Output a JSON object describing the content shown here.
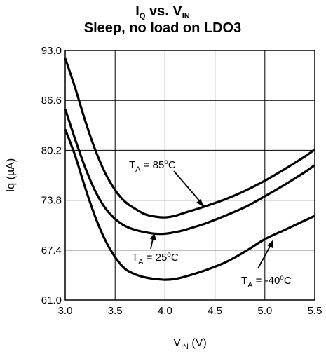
{
  "chart_data": {
    "type": "line",
    "title": {
      "main": "I",
      "main_sub": "Q",
      "mid": " vs. V",
      "mid_sub": "IN"
    },
    "subtitle": "Sleep, no load on LDO3",
    "xlabel": {
      "main": "V",
      "sub": "IN",
      "rest": " (V)"
    },
    "ylabel": "Iq (µA)",
    "xlim": [
      3.0,
      5.5
    ],
    "ylim": [
      61.0,
      93.0
    ],
    "x_ticks": [
      "3.0",
      "3.5",
      "4.0",
      "4.5",
      "5.0",
      "5.5"
    ],
    "y_ticks": [
      "93.0",
      "86.6",
      "80.2",
      "73.8",
      "67.4",
      "61.0"
    ],
    "grid": true,
    "series": [
      {
        "label": {
          "t": "T",
          "sub": "A",
          "mid": " = 85",
          "sup": "o",
          "end": "C"
        },
        "x": [
          3.0,
          3.1,
          3.2,
          3.3,
          3.4,
          3.5,
          3.6,
          3.7,
          3.8,
          3.9,
          4.0,
          4.1,
          4.2,
          4.4,
          4.6,
          4.8,
          5.0,
          5.2,
          5.4,
          5.5
        ],
        "y": [
          92.0,
          88.2,
          84.0,
          80.3,
          77.3,
          75.1,
          73.6,
          72.7,
          72.0,
          71.7,
          71.6,
          71.8,
          72.2,
          73.0,
          73.9,
          75.0,
          76.3,
          77.8,
          79.4,
          80.3
        ]
      },
      {
        "label": {
          "t": "T",
          "sub": "A",
          "mid": " = 25",
          "sup": "o",
          "end": "C"
        },
        "x": [
          3.0,
          3.1,
          3.2,
          3.3,
          3.4,
          3.5,
          3.6,
          3.7,
          3.8,
          3.9,
          4.0,
          4.1,
          4.2,
          4.4,
          4.6,
          4.8,
          5.0,
          5.2,
          5.4,
          5.5
        ],
        "y": [
          85.5,
          81.6,
          78.0,
          75.0,
          72.8,
          71.4,
          70.5,
          70.0,
          69.7,
          69.5,
          69.5,
          69.7,
          70.0,
          70.8,
          71.8,
          72.9,
          74.3,
          75.8,
          77.4,
          78.3
        ]
      },
      {
        "label": {
          "t": "T",
          "sub": "A",
          "mid": " = -40",
          "sup": "o",
          "end": "C"
        },
        "x": [
          3.0,
          3.1,
          3.2,
          3.3,
          3.4,
          3.5,
          3.6,
          3.7,
          3.8,
          3.9,
          4.0,
          4.1,
          4.2,
          4.4,
          4.6,
          4.8,
          5.0,
          5.2,
          5.4,
          5.5
        ],
        "y": [
          82.9,
          79.5,
          75.4,
          71.7,
          68.7,
          66.5,
          65.0,
          64.3,
          63.9,
          63.7,
          63.6,
          63.7,
          64.0,
          64.8,
          65.8,
          67.2,
          68.8,
          70.0,
          71.2,
          71.8
        ]
      }
    ]
  }
}
